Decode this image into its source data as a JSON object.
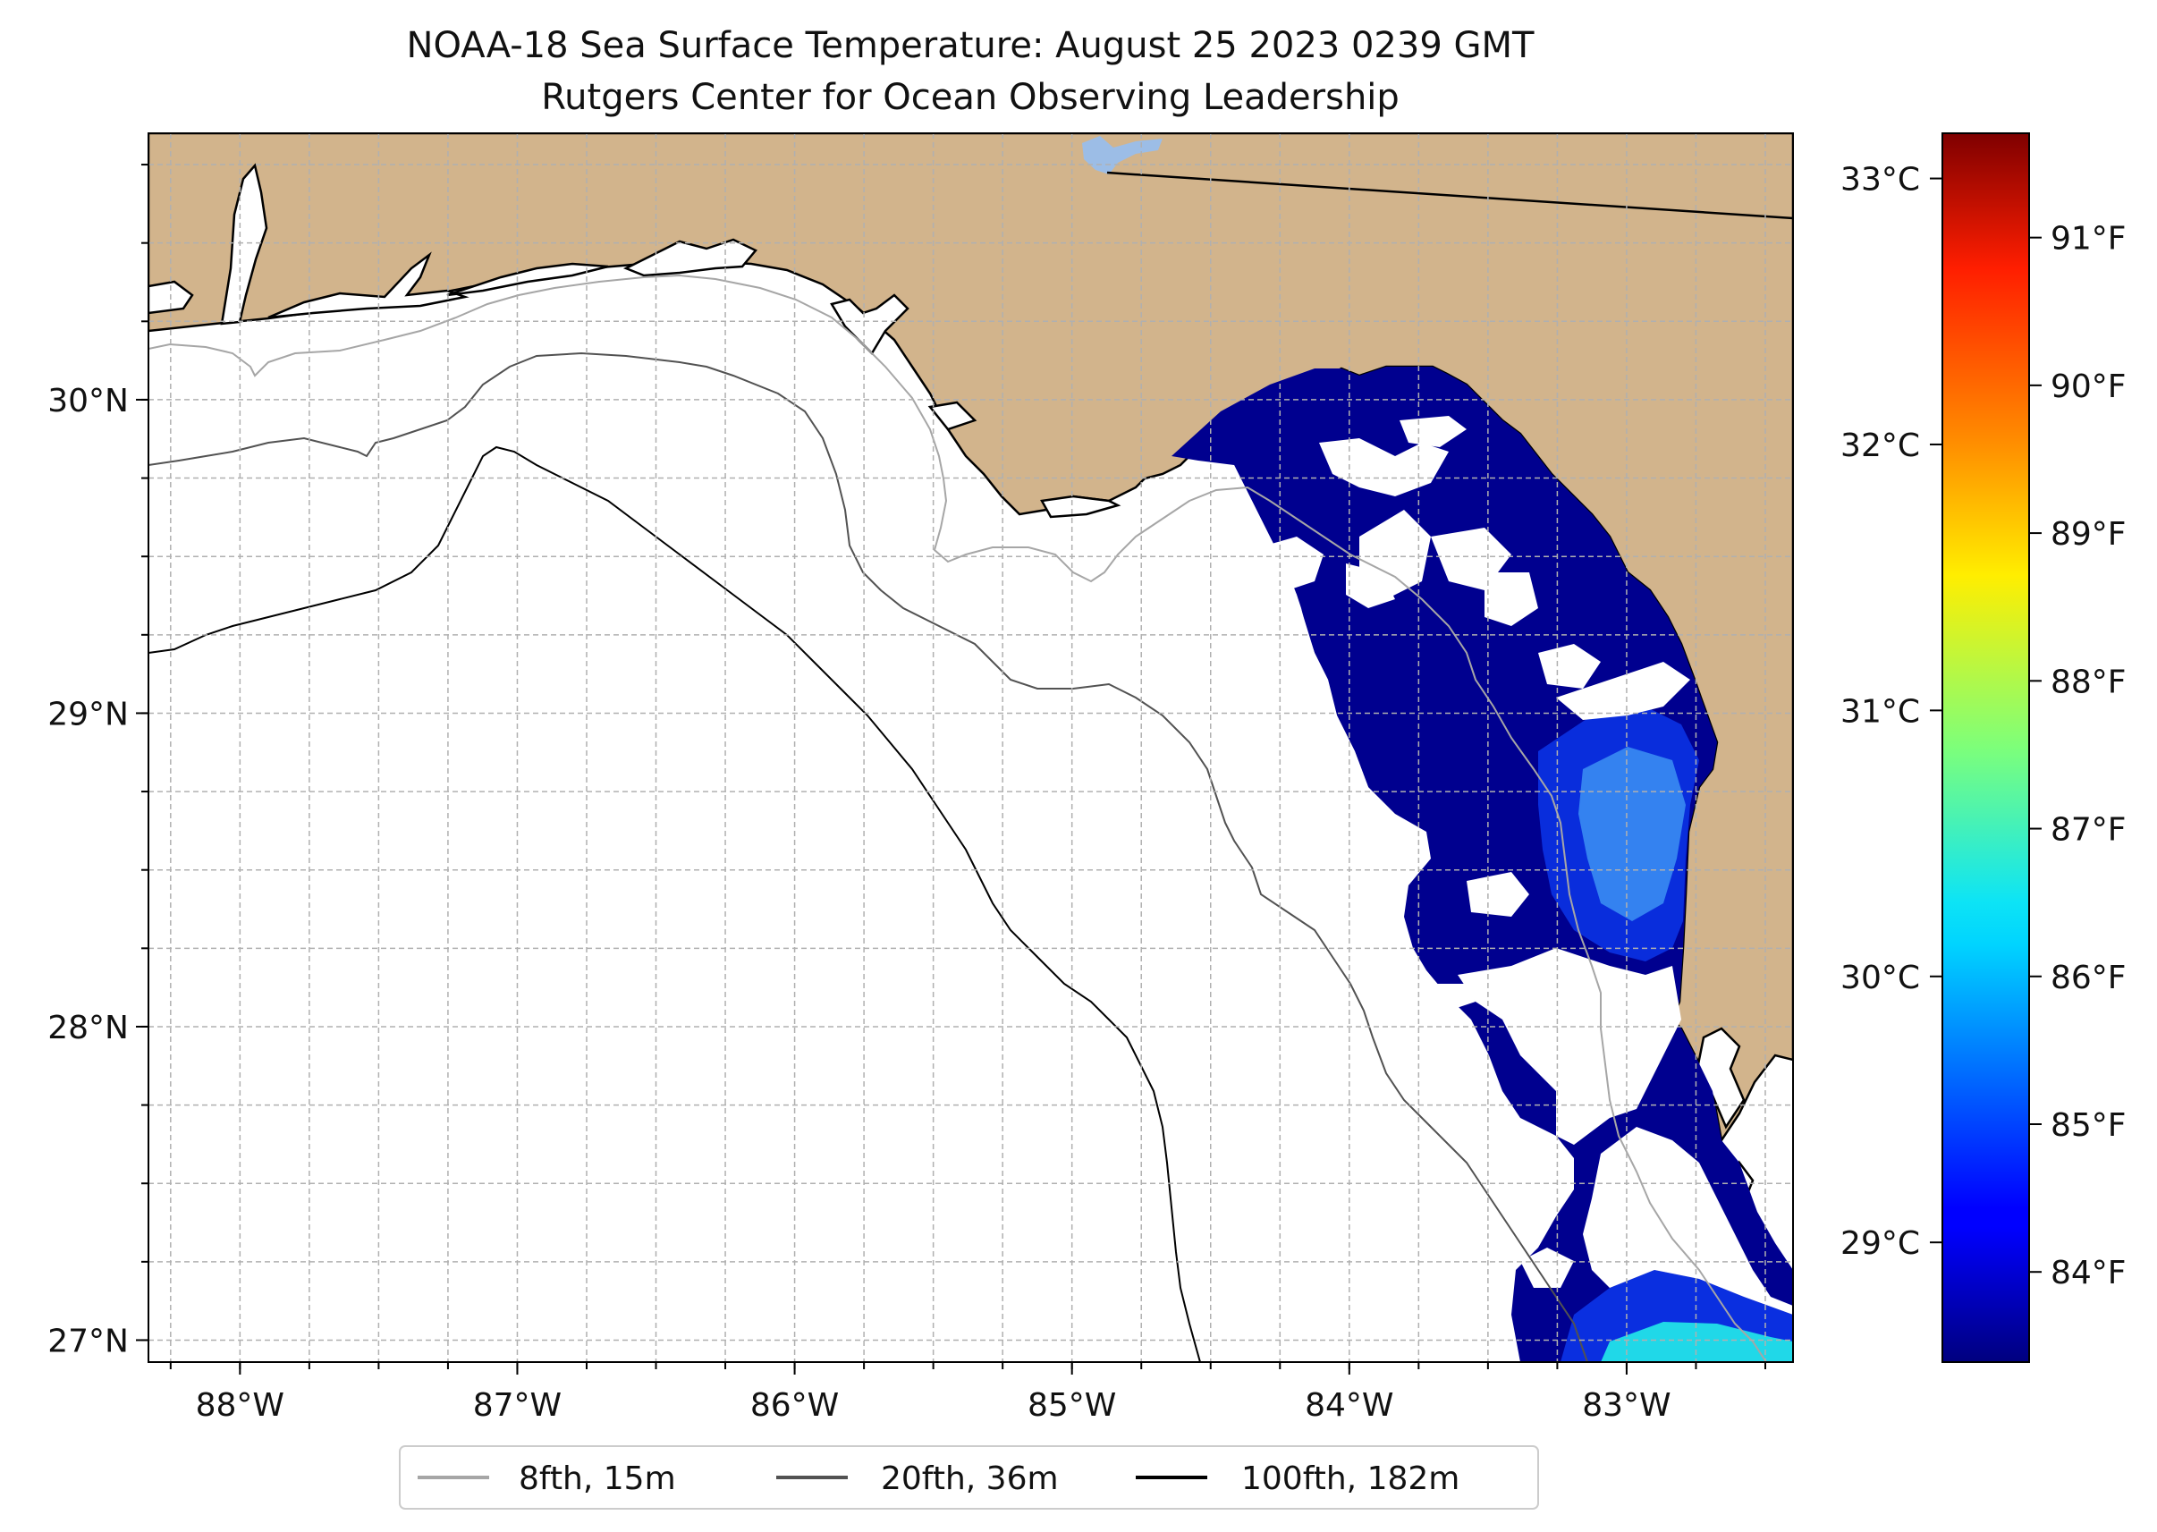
{
  "title": {
    "line1": "NOAA-18 Sea Surface Temperature: August 25 2023 0239 GMT",
    "line2": "Rutgers Center for Ocean Observing Leadership"
  },
  "map": {
    "lon_range": [
      -88.33,
      -82.4
    ],
    "lat_range": [
      26.93,
      30.85
    ],
    "lon_ticks": [
      {
        "value": -88,
        "label": "88°W"
      },
      {
        "value": -87,
        "label": "87°W"
      },
      {
        "value": -86,
        "label": "86°W"
      },
      {
        "value": -85,
        "label": "85°W"
      },
      {
        "value": -84,
        "label": "84°W"
      },
      {
        "value": -83,
        "label": "83°W"
      }
    ],
    "lat_ticks": [
      {
        "value": 27,
        "label": "27°N"
      },
      {
        "value": 28,
        "label": "28°N"
      },
      {
        "value": 29,
        "label": "29°N"
      },
      {
        "value": 30,
        "label": "30°N"
      }
    ],
    "grid": true,
    "land_color": "#d2b48c",
    "water_color": "#ffffff",
    "lake_color": "#9cbde6",
    "sst_colors": {
      "dark": "#00008f",
      "mid": "#0a2fe0",
      "light": "#3a8cf2",
      "cyan": "#20d8e8"
    }
  },
  "legend": {
    "placement": "bottom-center",
    "items": [
      {
        "label": "8fth, 15m",
        "color": "#a6a6a6"
      },
      {
        "label": "20fth, 36m",
        "color": "#525252"
      },
      {
        "label": "100fth, 182m",
        "color": "#000000"
      }
    ]
  },
  "colorbar": {
    "colormap": "jet",
    "celsius_ticks": [
      {
        "value": 29,
        "label": "29°C"
      },
      {
        "value": 30,
        "label": "30°C"
      },
      {
        "value": 31,
        "label": "31°C"
      },
      {
        "value": 32,
        "label": "32°C"
      },
      {
        "value": 33,
        "label": "33°C"
      }
    ],
    "fahrenheit_ticks": [
      {
        "value": 84,
        "label": "84°F"
      },
      {
        "value": 85,
        "label": "85°F"
      },
      {
        "value": 86,
        "label": "86°F"
      },
      {
        "value": 87,
        "label": "87°F"
      },
      {
        "value": 88,
        "label": "88°F"
      },
      {
        "value": 89,
        "label": "89°F"
      },
      {
        "value": 90,
        "label": "90°F"
      },
      {
        "value": 91,
        "label": "91°F"
      }
    ],
    "range_celsius": [
      28.55,
      33.17
    ]
  }
}
